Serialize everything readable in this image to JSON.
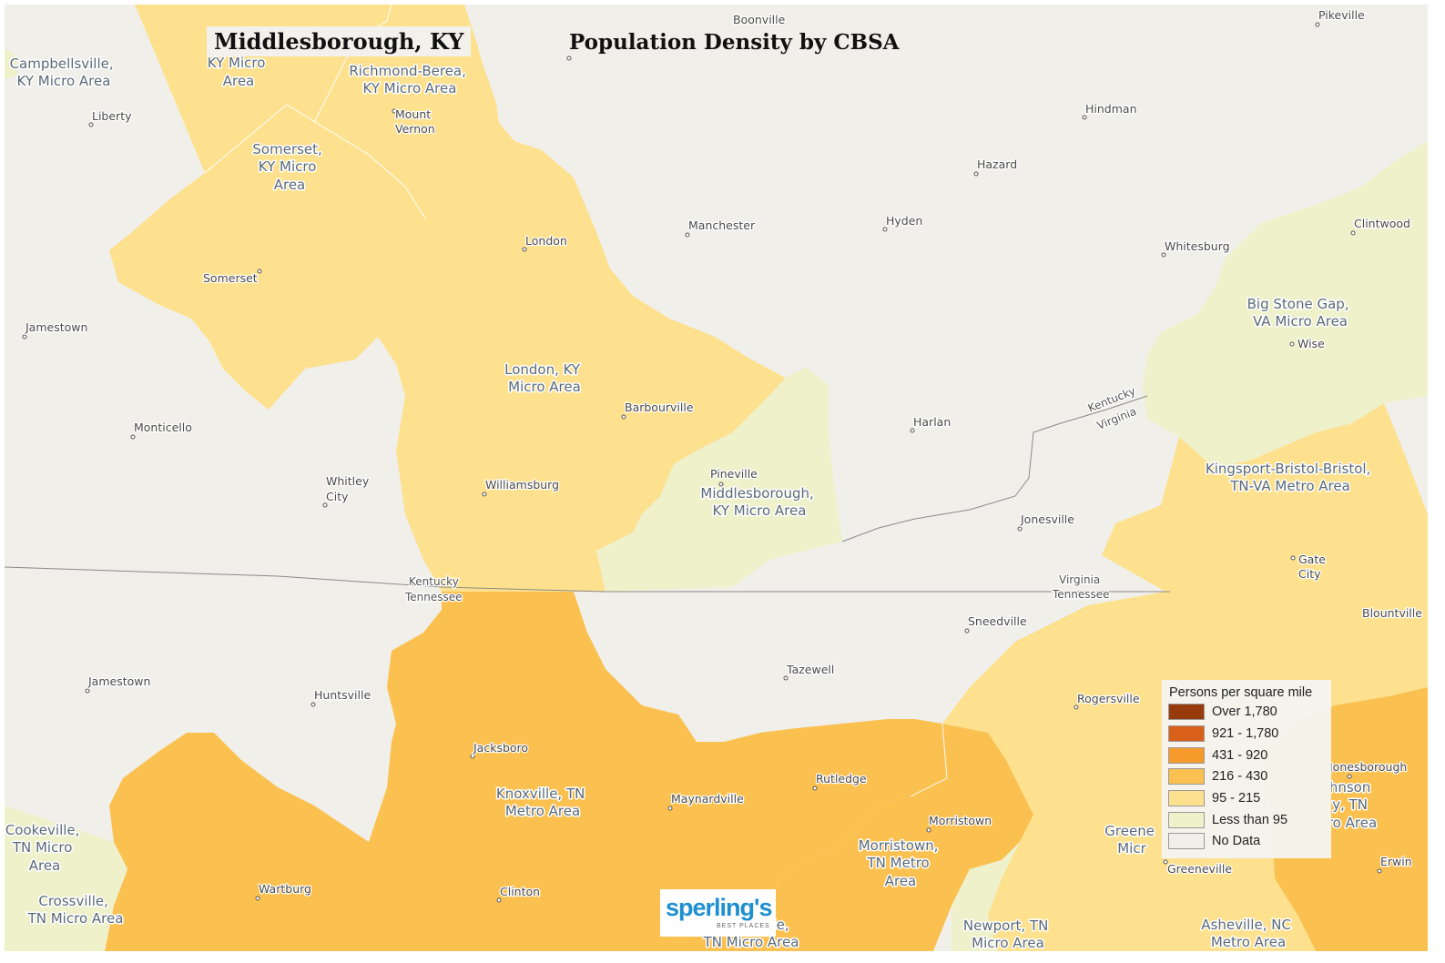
{
  "title": "Middlesborough, KY",
  "map_title": "Population Density by CBSA",
  "legend": {
    "title": "Persons per square mile",
    "items": [
      {
        "label": "Over 1,780",
        "color": "#973a0c"
      },
      {
        "label": "921 - 1,780",
        "color": "#d96018"
      },
      {
        "label": "431 - 920",
        "color": "#f79a2c"
      },
      {
        "label": "216 - 430",
        "color": "#fbc150"
      },
      {
        "label": "95 - 215",
        "color": "#fde18e"
      },
      {
        "label": "Less than 95",
        "color": "#eff1cb"
      },
      {
        "label": "No Data",
        "color": "#f0efea"
      }
    ]
  },
  "regions": {
    "campbellsville": [
      "Campbellsville,",
      "KY Micro Area"
    ],
    "danville": [
      "KY Micro",
      "Area"
    ],
    "richmond": [
      "Richmond-Berea,",
      "KY Micro Area"
    ],
    "somerset": [
      "Somerset,",
      "KY Micro",
      "Area"
    ],
    "london": [
      "London, KY",
      "Micro Area"
    ],
    "middlesborough": [
      "Middlesborough,",
      "KY Micro Area"
    ],
    "big_stone_gap": [
      "Big Stone Gap,",
      "VA Micro Area"
    ],
    "kingsport": [
      "Kingsport-Bristol-Bristol,",
      "TN-VA Metro Area"
    ],
    "knoxville": [
      "Knoxville, TN",
      "Metro Area"
    ],
    "morristown": [
      "Morristown,",
      "TN Metro",
      "Area"
    ],
    "cookeville": [
      "Cookeville,",
      "TN Micro",
      "Area"
    ],
    "crossville": [
      "Crossville,",
      "TN Micro Area"
    ],
    "newport": [
      "Newport, TN",
      "Micro Area"
    ],
    "asheville": [
      "Asheville, NC",
      "Metro Area"
    ],
    "johnson_city": [
      "hnson",
      "y, TN",
      "ro Area"
    ],
    "greeneville": [
      "Greene",
      "Micr"
    ],
    "sevierville": [
      "le,",
      "TN Micro Area"
    ]
  },
  "cities": {
    "boonville": "Boonville",
    "pikeville": "Pikeville",
    "liberty": "Liberty",
    "mount_vernon": [
      "Mount",
      "Vernon"
    ],
    "hindman": "Hindman",
    "hazard": "Hazard",
    "manchester": "Manchester",
    "hyden": "Hyden",
    "london": "London",
    "clintwood": "Clintwood",
    "whitesburg": "Whitesburg",
    "somerset": "Somerset",
    "jamestown_ky": "Jamestown",
    "wise": "Wise",
    "barbourville": "Barbourville",
    "monticello": "Monticello",
    "harlan": "Harlan",
    "whitley_city": [
      "Whitley",
      "City"
    ],
    "pineville": "Pineville",
    "williamsburg": "Williamsburg",
    "jonesville": "Jonesville",
    "gate_city": [
      "Gate",
      "City"
    ],
    "sneedville": "Sneedville",
    "blountville": "Blountville",
    "tazewell": "Tazewell",
    "jamestown_tn": "Jamestown",
    "huntsville": "Huntsville",
    "rogersville": "Rogersville",
    "jacksboro": "Jacksboro",
    "jonesborough": "Jonesborough",
    "rutledge": "Rutledge",
    "maynardville": "Maynardville",
    "morristown": "Morristown",
    "greeneville": "Greeneville",
    "erwin": "Erwin",
    "wartburg": "Wartburg",
    "clinton": "Clinton"
  },
  "state_lines": {
    "ky_tn_north": "Kentucky",
    "ky_tn_south": "Tennessee",
    "va_tn_north": "Virginia",
    "va_tn_south": "Tennessee",
    "ky_va_north": "Kentucky",
    "ky_va_south": "Virginia"
  },
  "logo": {
    "main": "sperling's",
    "sub": "BEST PLACES"
  }
}
